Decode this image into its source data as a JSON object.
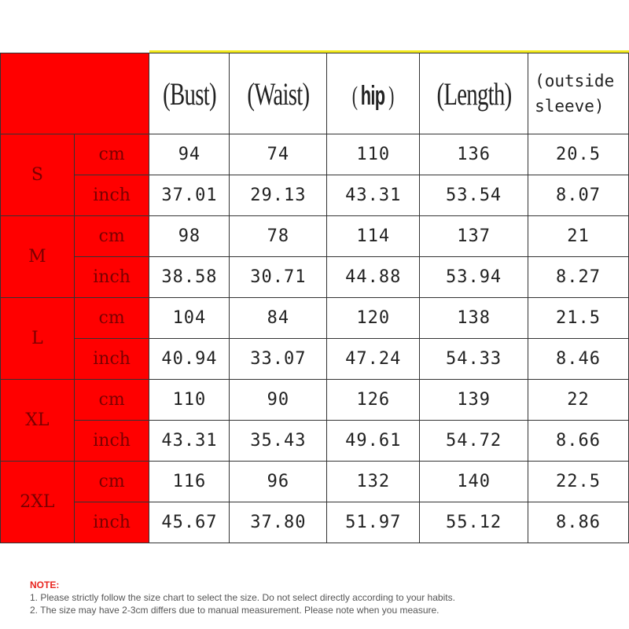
{
  "headers": {
    "bust": "(Bust)",
    "waist": "(Waist)",
    "hip": "hip",
    "hip_open": "(",
    "hip_close": ")",
    "length": "(Length)",
    "sleeve_line1": "(outside",
    "sleeve_line2": "sleeve)"
  },
  "sizes": [
    {
      "label": "S",
      "cm": [
        "94",
        "74",
        "110",
        "136",
        "20.5"
      ],
      "inch": [
        "37.01",
        "29.13",
        "43.31",
        "53.54",
        "8.07"
      ]
    },
    {
      "label": "M",
      "cm": [
        "98",
        "78",
        "114",
        "137",
        "21"
      ],
      "inch": [
        "38.58",
        "30.71",
        "44.88",
        "53.94",
        "8.27"
      ]
    },
    {
      "label": "L",
      "cm": [
        "104",
        "84",
        "120",
        "138",
        "21.5"
      ],
      "inch": [
        "40.94",
        "33.07",
        "47.24",
        "54.33",
        "8.46"
      ]
    },
    {
      "label": "XL",
      "cm": [
        "110",
        "90",
        "126",
        "139",
        "22"
      ],
      "inch": [
        "43.31",
        "35.43",
        "49.61",
        "54.72",
        "8.66"
      ]
    },
    {
      "label": "2XL",
      "cm": [
        "116",
        "96",
        "132",
        "140",
        "22.5"
      ],
      "inch": [
        "45.67",
        "37.80",
        "51.97",
        "55.12",
        "8.86"
      ]
    }
  ],
  "units": {
    "cm": "cm",
    "inch": "inch"
  },
  "note": {
    "title": "NOTE:",
    "line1": "1. Please strictly follow the size chart  to select the size. Do not select directly according to your habits.",
    "line2": "2. The size may have 2-3cm differs due to manual measurement. Please note when you measure."
  },
  "colors": {
    "header_red": "#ff0000",
    "accent_yellow": "#f2ea1c",
    "note_red": "#e8251f"
  }
}
